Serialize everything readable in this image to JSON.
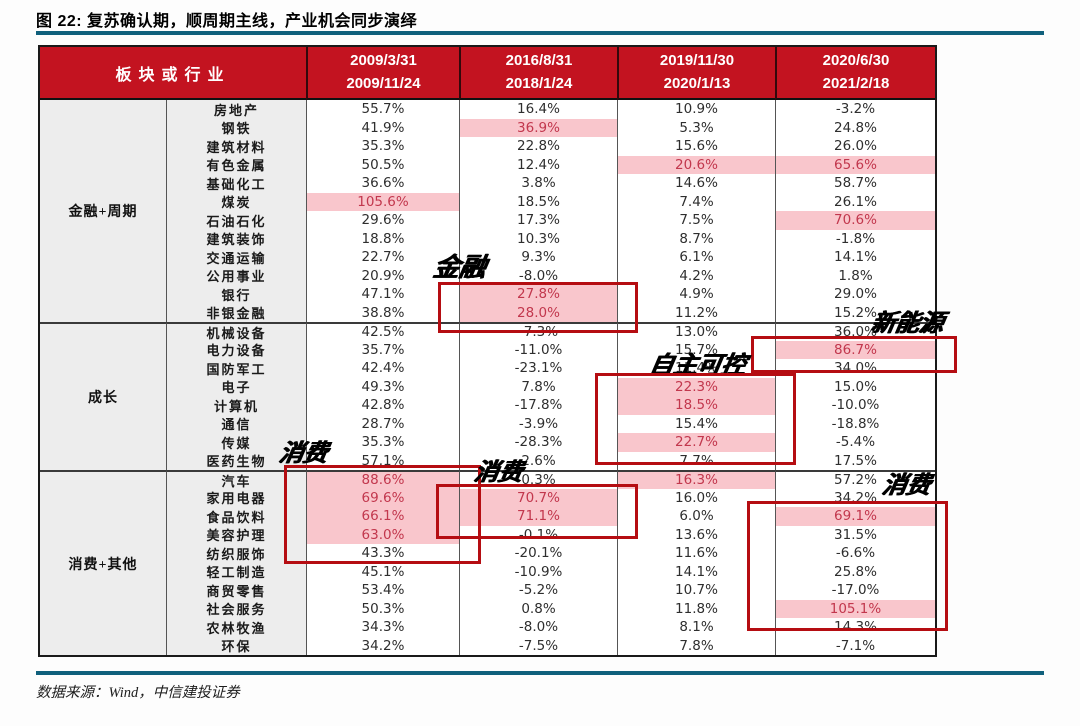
{
  "figure": {
    "title": "图 22: 复苏确认期，顺周期主线，产业机会同步演绎",
    "source": "数据来源：Wind，中信建投证券"
  },
  "colors": {
    "header_bg": "#c31320",
    "header_text": "#ffffff",
    "highlight_bg": "#f9c6cc",
    "highlight_text": "#c2374d",
    "annotation_box": "#b50d12",
    "rule_blue": "#10607c",
    "label_col_bg": "#ededed"
  },
  "chart_data": {
    "type": "table",
    "title": "图 22: 复苏确认期，顺周期主线，产业机会同步演绎",
    "source": "数据来源：Wind，中信建投证券",
    "corner_header": "板块或行业",
    "periods": [
      {
        "start": "2009/3/31",
        "end": "2009/11/24"
      },
      {
        "start": "2016/8/31",
        "end": "2018/1/24"
      },
      {
        "start": "2019/11/30",
        "end": "2020/1/13"
      },
      {
        "start": "2020/6/30",
        "end": "2021/2/18"
      }
    ],
    "sections": [
      {
        "label": "金融+周期",
        "rows": [
          {
            "name": "房地产",
            "values": [
              "55.7%",
              "16.4%",
              "10.9%",
              "-3.2%"
            ],
            "highlight": [
              0,
              0,
              0,
              0
            ]
          },
          {
            "name": "钢铁",
            "values": [
              "41.9%",
              "36.9%",
              "5.3%",
              "24.8%"
            ],
            "highlight": [
              0,
              1,
              0,
              0
            ]
          },
          {
            "name": "建筑材料",
            "values": [
              "35.3%",
              "22.8%",
              "15.6%",
              "26.0%"
            ],
            "highlight": [
              0,
              0,
              0,
              0
            ]
          },
          {
            "name": "有色金属",
            "values": [
              "50.5%",
              "12.4%",
              "20.6%",
              "65.6%"
            ],
            "highlight": [
              0,
              0,
              1,
              1
            ]
          },
          {
            "name": "基础化工",
            "values": [
              "36.6%",
              "3.8%",
              "14.6%",
              "58.7%"
            ],
            "highlight": [
              0,
              0,
              0,
              0
            ]
          },
          {
            "name": "煤炭",
            "values": [
              "105.6%",
              "18.5%",
              "7.4%",
              "26.1%"
            ],
            "highlight": [
              1,
              0,
              0,
              0
            ]
          },
          {
            "name": "石油石化",
            "values": [
              "29.6%",
              "17.3%",
              "7.5%",
              "70.6%"
            ],
            "highlight": [
              0,
              0,
              0,
              1
            ]
          },
          {
            "name": "建筑装饰",
            "values": [
              "18.8%",
              "10.3%",
              "8.7%",
              "-1.8%"
            ],
            "highlight": [
              0,
              0,
              0,
              0
            ]
          },
          {
            "name": "交通运输",
            "values": [
              "22.7%",
              "9.3%",
              "6.1%",
              "14.1%"
            ],
            "highlight": [
              0,
              0,
              0,
              0
            ]
          },
          {
            "name": "公用事业",
            "values": [
              "20.9%",
              "-8.0%",
              "4.2%",
              "1.8%"
            ],
            "highlight": [
              0,
              0,
              0,
              0
            ]
          },
          {
            "name": "银行",
            "values": [
              "47.1%",
              "27.8%",
              "4.9%",
              "29.0%"
            ],
            "highlight": [
              0,
              1,
              0,
              0
            ]
          },
          {
            "name": "非银金融",
            "values": [
              "38.8%",
              "28.0%",
              "11.2%",
              "15.2%"
            ],
            "highlight": [
              0,
              1,
              0,
              0
            ]
          }
        ]
      },
      {
        "label": "成长",
        "rows": [
          {
            "name": "机械设备",
            "values": [
              "42.5%",
              "-7.3%",
              "13.0%",
              "36.0%"
            ],
            "highlight": [
              0,
              0,
              0,
              0
            ]
          },
          {
            "name": "电力设备",
            "values": [
              "35.7%",
              "-11.0%",
              "15.7%",
              "86.7%"
            ],
            "highlight": [
              0,
              0,
              0,
              1
            ]
          },
          {
            "name": "国防军工",
            "values": [
              "42.4%",
              "-23.1%",
              "11.4%",
              "34.0%"
            ],
            "highlight": [
              0,
              0,
              0,
              0
            ]
          },
          {
            "name": "电子",
            "values": [
              "49.3%",
              "7.8%",
              "22.3%",
              "15.0%"
            ],
            "highlight": [
              0,
              0,
              1,
              0
            ]
          },
          {
            "name": "计算机",
            "values": [
              "42.8%",
              "-17.8%",
              "18.5%",
              "-10.0%"
            ],
            "highlight": [
              0,
              0,
              1,
              0
            ]
          },
          {
            "name": "通信",
            "values": [
              "28.7%",
              "-3.9%",
              "15.4%",
              "-18.8%"
            ],
            "highlight": [
              0,
              0,
              0,
              0
            ]
          },
          {
            "name": "传媒",
            "values": [
              "35.3%",
              "-28.3%",
              "22.7%",
              "-5.4%"
            ],
            "highlight": [
              0,
              0,
              1,
              0
            ]
          },
          {
            "name": "医药生物",
            "values": [
              "57.1%",
              "2.6%",
              "7.7%",
              "17.5%"
            ],
            "highlight": [
              0,
              0,
              0,
              0
            ]
          }
        ]
      },
      {
        "label": "消费+其他",
        "rows": [
          {
            "name": "汽车",
            "values": [
              "88.6%",
              "0.3%",
              "16.3%",
              "57.2%"
            ],
            "highlight": [
              1,
              0,
              1,
              0
            ]
          },
          {
            "name": "家用电器",
            "values": [
              "69.6%",
              "70.7%",
              "16.0%",
              "34.2%"
            ],
            "highlight": [
              1,
              1,
              0,
              0
            ]
          },
          {
            "name": "食品饮料",
            "values": [
              "66.1%",
              "71.1%",
              "6.0%",
              "69.1%"
            ],
            "highlight": [
              1,
              1,
              0,
              1
            ]
          },
          {
            "name": "美容护理",
            "values": [
              "63.0%",
              "-0.1%",
              "13.6%",
              "31.5%"
            ],
            "highlight": [
              1,
              0,
              0,
              0
            ]
          },
          {
            "name": "纺织服饰",
            "values": [
              "43.3%",
              "-20.1%",
              "11.6%",
              "-6.6%"
            ],
            "highlight": [
              0,
              0,
              0,
              0
            ]
          },
          {
            "name": "轻工制造",
            "values": [
              "45.1%",
              "-10.9%",
              "14.1%",
              "25.8%"
            ],
            "highlight": [
              0,
              0,
              0,
              0
            ]
          },
          {
            "name": "商贸零售",
            "values": [
              "53.4%",
              "-5.2%",
              "10.7%",
              "-17.0%"
            ],
            "highlight": [
              0,
              0,
              0,
              0
            ]
          },
          {
            "name": "社会服务",
            "values": [
              "50.3%",
              "0.8%",
              "11.8%",
              "105.1%"
            ],
            "highlight": [
              0,
              0,
              0,
              1
            ]
          },
          {
            "name": "农林牧渔",
            "values": [
              "34.3%",
              "-8.0%",
              "8.1%",
              "14.3%"
            ],
            "highlight": [
              0,
              0,
              0,
              0
            ]
          },
          {
            "name": "环保",
            "values": [
              "34.2%",
              "-7.5%",
              "7.8%",
              "-7.1%"
            ],
            "highlight": [
              0,
              0,
              0,
              0
            ]
          }
        ]
      },
      {
        "label_note": ""
      }
    ],
    "annotations": [
      {
        "label": "金融"
      },
      {
        "label": "新能源"
      },
      {
        "label": "自主可控"
      },
      {
        "label": "消费"
      },
      {
        "label": "消费"
      },
      {
        "label": "消费"
      }
    ]
  }
}
